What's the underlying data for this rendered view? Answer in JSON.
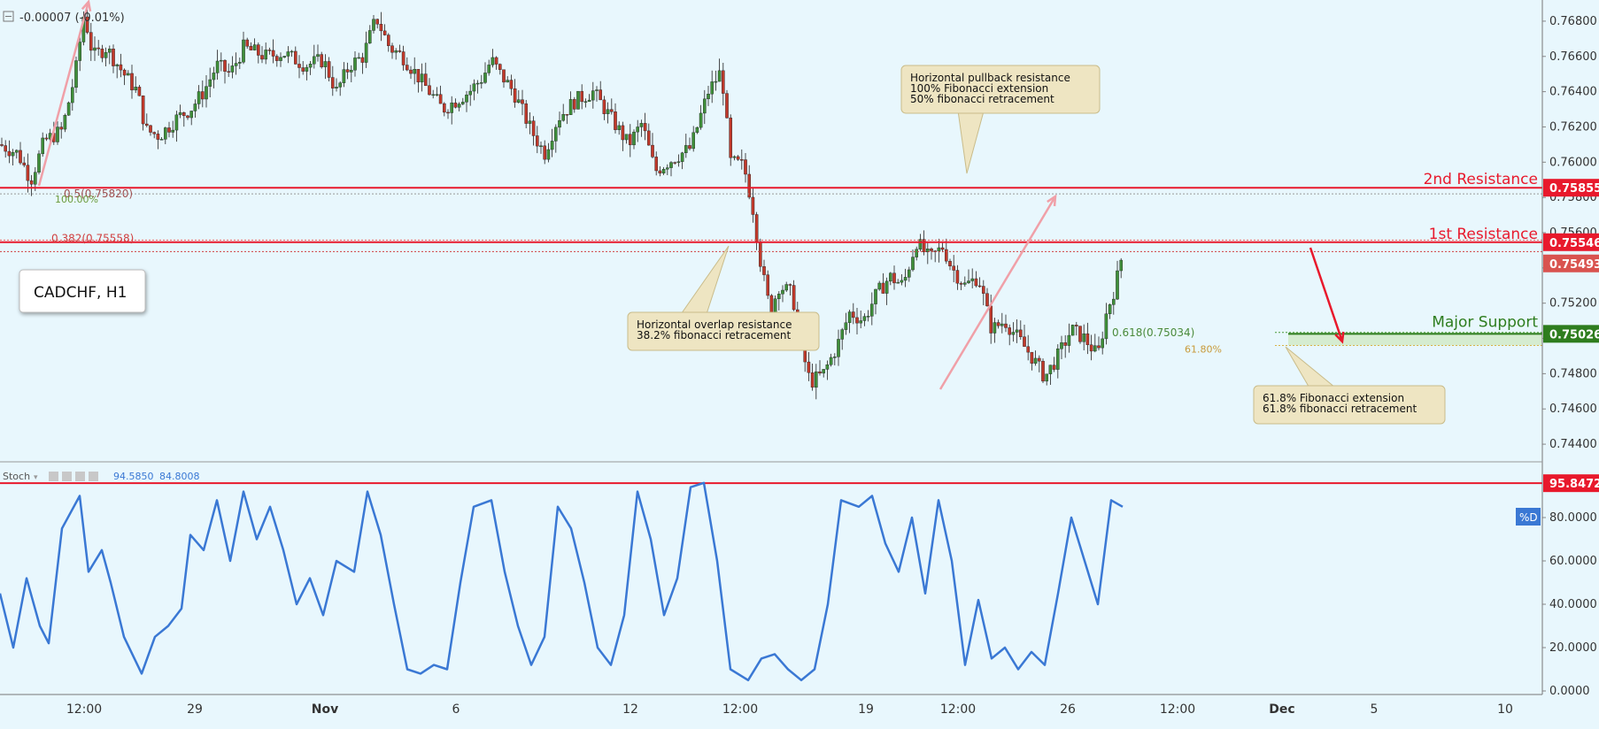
{
  "toolbar": {
    "change_text": "-0.00007 (-0.01%)"
  },
  "symbol_label": "CADCHF, H1",
  "stoch_header": {
    "name": "Stoch",
    "k_value": "94.5850",
    "d_value": "84.8008",
    "legend_tag": "%D"
  },
  "levels": {
    "second_resistance": {
      "label": "2nd Resistance",
      "price": "0.75855",
      "value": 0.75855
    },
    "first_resistance": {
      "label": "1st Resistance",
      "price": "0.75546",
      "value": 0.75546
    },
    "current": {
      "price": "0.75493",
      "value": 0.75493
    },
    "major_support": {
      "label": "Major Support",
      "price": "0.75026",
      "value": 0.75026
    },
    "stoch_line": {
      "price": "95.8472",
      "value": 95.8472
    }
  },
  "fib_labels": {
    "fib_05": "0.5(0.75820)",
    "fib_100": "100.00%",
    "fib_0382": "0.382(0.75558)",
    "fib_0618": "0.618(0.75034)",
    "fib_618pct": "61.80%"
  },
  "annotations": {
    "pullback": [
      "Horizontal pullback resistance",
      "100% Fibonacci extension",
      "50% fibonacci retracement"
    ],
    "overlap": [
      "Horizontal overlap resistance",
      "38.2% fibonacci retracement"
    ],
    "support": [
      "61.8% Fibonacci extension",
      "61.8% fibonacci retracement"
    ]
  },
  "colors": {
    "background": "#e8f7fd",
    "bull": "#3f8f3a",
    "bear": "#c0392b",
    "resistance": "#e8192c",
    "support": "#2e7d1e",
    "stoch": "#3a78d4",
    "note": "#eee5c2"
  },
  "chart_data": [
    {
      "type": "candlestick",
      "ylim": [
        0.743,
        0.769
      ],
      "yticks": [
        0.768,
        0.766,
        0.764,
        0.762,
        0.76,
        0.758,
        0.756,
        0.754,
        0.752,
        0.75,
        0.748,
        0.746,
        0.744
      ],
      "ytick_labels": [
        "0.76800",
        "0.76600",
        "0.76400",
        "0.76200",
        "0.76000",
        "0.75800",
        "0.75600",
        "0.75400",
        "0.75200",
        "0.75000",
        "0.74800",
        "0.74600",
        "0.74400"
      ],
      "x_labels": [
        "12:00",
        "29",
        "Nov",
        "6",
        "12",
        "12:00",
        "19",
        "12:00",
        "26",
        "12:00",
        "Dec",
        "5",
        "10"
      ],
      "close_path": [
        [
          0,
          0.761
        ],
        [
          20,
          0.7605
        ],
        [
          35,
          0.759
        ],
        [
          50,
          0.7612
        ],
        [
          70,
          0.7618
        ],
        [
          85,
          0.765
        ],
        [
          95,
          0.7685
        ],
        [
          105,
          0.766
        ],
        [
          120,
          0.7665
        ],
        [
          140,
          0.765
        ],
        [
          155,
          0.764
        ],
        [
          165,
          0.7618
        ],
        [
          180,
          0.7615
        ],
        [
          200,
          0.7625
        ],
        [
          215,
          0.763
        ],
        [
          230,
          0.764
        ],
        [
          245,
          0.7655
        ],
        [
          260,
          0.765
        ],
        [
          275,
          0.7665
        ],
        [
          300,
          0.766
        ],
        [
          320,
          0.7662
        ],
        [
          345,
          0.7655
        ],
        [
          365,
          0.7658
        ],
        [
          380,
          0.764
        ],
        [
          395,
          0.7655
        ],
        [
          410,
          0.766
        ],
        [
          425,
          0.7682
        ],
        [
          440,
          0.7665
        ],
        [
          455,
          0.766
        ],
        [
          470,
          0.765
        ],
        [
          485,
          0.764
        ],
        [
          500,
          0.763
        ],
        [
          515,
          0.7635
        ],
        [
          530,
          0.764
        ],
        [
          545,
          0.7648
        ],
        [
          555,
          0.7658
        ],
        [
          565,
          0.765
        ],
        [
          580,
          0.764
        ],
        [
          600,
          0.7618
        ],
        [
          615,
          0.7605
        ],
        [
          630,
          0.7625
        ],
        [
          650,
          0.7635
        ],
        [
          670,
          0.764
        ],
        [
          690,
          0.7625
        ],
        [
          710,
          0.761
        ],
        [
          725,
          0.7622
        ],
        [
          740,
          0.7595
        ],
        [
          760,
          0.7602
        ],
        [
          780,
          0.7608
        ],
        [
          800,
          0.764
        ],
        [
          815,
          0.7652
        ],
        [
          825,
          0.76
        ],
        [
          840,
          0.7598
        ],
        [
          850,
          0.7575
        ],
        [
          860,
          0.754
        ],
        [
          870,
          0.7515
        ],
        [
          880,
          0.753
        ],
        [
          895,
          0.7525
        ],
        [
          905,
          0.7495
        ],
        [
          915,
          0.7475
        ],
        [
          930,
          0.748
        ],
        [
          945,
          0.7495
        ],
        [
          960,
          0.7515
        ],
        [
          975,
          0.751
        ],
        [
          990,
          0.7525
        ],
        [
          1005,
          0.7535
        ],
        [
          1020,
          0.753
        ],
        [
          1035,
          0.7555
        ],
        [
          1050,
          0.7545
        ],
        [
          1065,
          0.7552
        ],
        [
          1075,
          0.754
        ],
        [
          1090,
          0.753
        ],
        [
          1105,
          0.7535
        ],
        [
          1120,
          0.7505
        ],
        [
          1135,
          0.751
        ],
        [
          1150,
          0.75
        ],
        [
          1165,
          0.749
        ],
        [
          1180,
          0.7478
        ],
        [
          1195,
          0.749
        ],
        [
          1210,
          0.7505
        ],
        [
          1225,
          0.75
        ],
        [
          1240,
          0.749
        ],
        [
          1250,
          0.7515
        ],
        [
          1260,
          0.753
        ],
        [
          1268,
          0.7549
        ]
      ]
    },
    {
      "type": "line",
      "name": "Stoch",
      "ylim": [
        0,
        100
      ],
      "yticks": [
        0,
        20,
        40,
        60,
        80
      ],
      "ytick_labels": [
        "0.0000",
        "20.0000",
        "40.0000",
        "60.0000",
        "80.0000"
      ],
      "x": [
        0,
        15,
        30,
        45,
        55,
        70,
        90,
        100,
        115,
        125,
        140,
        160,
        175,
        190,
        205,
        215,
        230,
        245,
        260,
        275,
        290,
        305,
        320,
        335,
        350,
        365,
        380,
        400,
        415,
        430,
        445,
        460,
        475,
        490,
        505,
        520,
        535,
        555,
        570,
        585,
        600,
        615,
        630,
        645,
        660,
        675,
        690,
        705,
        720,
        735,
        750,
        765,
        780,
        795,
        810,
        825,
        845,
        860,
        875,
        890,
        905,
        920,
        935,
        950,
        970,
        985,
        1000,
        1015,
        1030,
        1045,
        1060,
        1075,
        1090,
        1105,
        1120,
        1135,
        1150,
        1165,
        1180,
        1195,
        1210,
        1225,
        1240,
        1255,
        1268
      ],
      "values": [
        45,
        20,
        52,
        30,
        22,
        75,
        90,
        55,
        65,
        50,
        25,
        8,
        25,
        30,
        38,
        72,
        65,
        88,
        60,
        92,
        70,
        85,
        65,
        40,
        52,
        35,
        60,
        55,
        92,
        72,
        40,
        10,
        8,
        12,
        10,
        50,
        85,
        88,
        55,
        30,
        12,
        25,
        85,
        75,
        50,
        20,
        12,
        35,
        92,
        70,
        35,
        52,
        94,
        96,
        60,
        10,
        5,
        15,
        17,
        10,
        5,
        10,
        40,
        88,
        85,
        90,
        68,
        55,
        80,
        45,
        88,
        60,
        12,
        42,
        15,
        20,
        10,
        18,
        12,
        45,
        80,
        60,
        40,
        88,
        85
      ]
    }
  ]
}
